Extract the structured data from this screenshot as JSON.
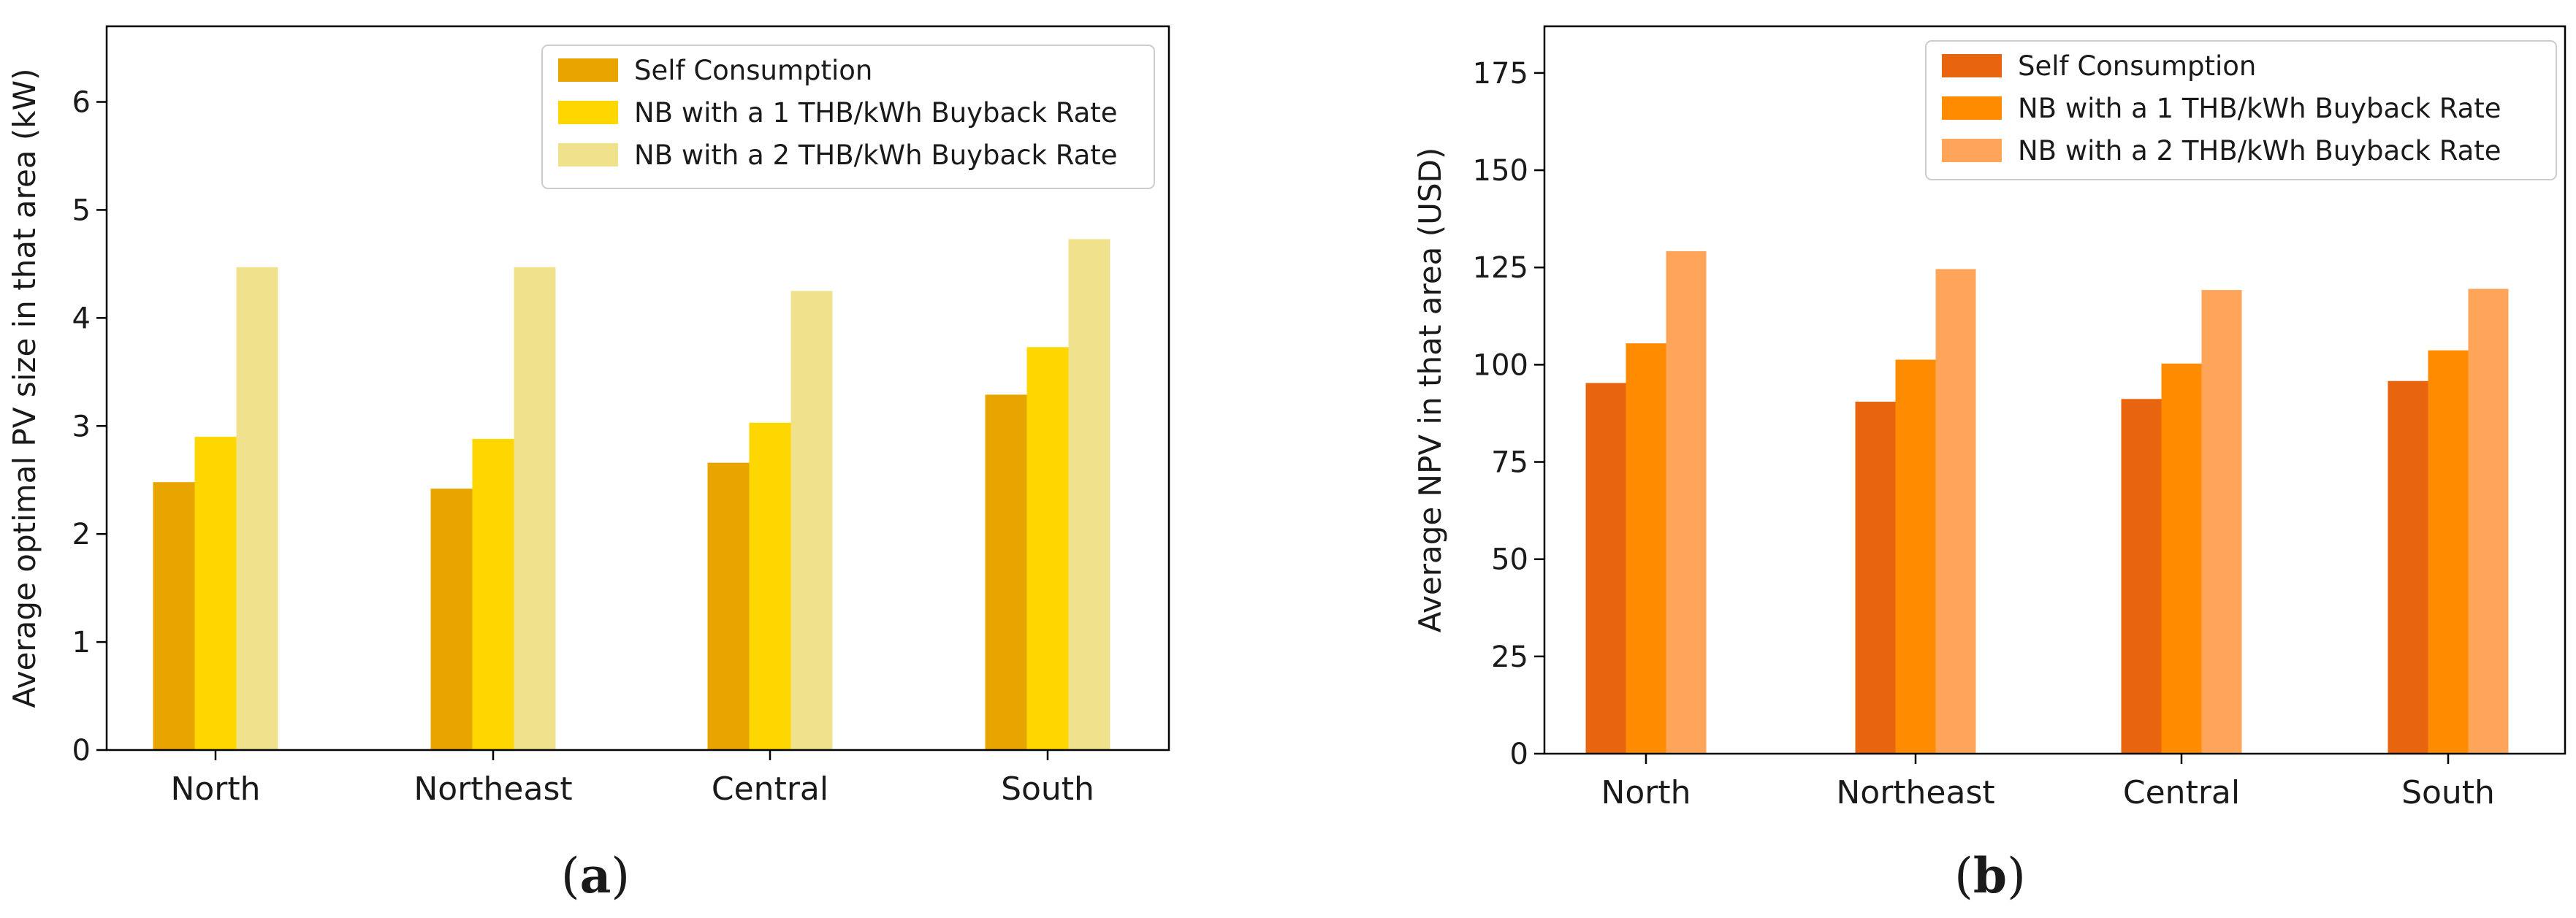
{
  "chart_data": [
    {
      "type": "bar",
      "categories": [
        "North",
        "Northeast",
        "Central",
        "South"
      ],
      "series": [
        {
          "name": "Self Consumption",
          "values": [
            2.48,
            2.42,
            2.66,
            3.29
          ],
          "color": "#e8a500"
        },
        {
          "name": "NB with a 1 THB/kWh Buyback Rate",
          "values": [
            2.9,
            2.88,
            3.03,
            3.73
          ],
          "color": "#ffd700"
        },
        {
          "name": "NB with a 2 THB/kWh Buyback Rate",
          "values": [
            4.47,
            4.47,
            4.25,
            4.73
          ],
          "color": "#f0e28c"
        }
      ],
      "title": "",
      "xlabel": "",
      "ylabel": "Average optimal PV size in that area (kW)",
      "ylim": [
        0,
        6.7
      ],
      "yticks": [
        0,
        1,
        2,
        3,
        4,
        5,
        6
      ],
      "legend_position": "top-right",
      "caption_open": "(",
      "caption_letter": "a",
      "caption_close": ")"
    },
    {
      "type": "bar",
      "categories": [
        "North",
        "Northeast",
        "Central",
        "South"
      ],
      "series": [
        {
          "name": "Self Consumption",
          "values": [
            95.3,
            90.5,
            91.2,
            95.8
          ],
          "color": "#e8640f"
        },
        {
          "name": "NB with a 1 THB/kWh Buyback Rate",
          "values": [
            105.5,
            101.3,
            100.3,
            103.7
          ],
          "color": "#ff8c00"
        },
        {
          "name": "NB with a 2 THB/kWh Buyback Rate",
          "values": [
            129.2,
            124.6,
            119.2,
            119.5
          ],
          "color": "#ffa55a"
        }
      ],
      "title": "",
      "xlabel": "",
      "ylabel": "Average NPV in that area (USD)",
      "ylim": [
        0,
        187
      ],
      "yticks": [
        0,
        25,
        50,
        75,
        100,
        125,
        150,
        175
      ],
      "legend_position": "top-right",
      "caption_open": "(",
      "caption_letter": "b",
      "caption_close": ")"
    }
  ]
}
